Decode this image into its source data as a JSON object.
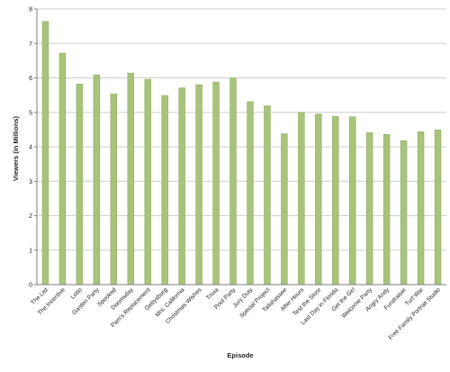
{
  "chart_data": {
    "type": "bar",
    "xlabel": "Episode",
    "ylabel": "Viewers (in Millions)",
    "ylim": [
      0,
      8
    ],
    "yticks": [
      0,
      1,
      2,
      3,
      4,
      5,
      6,
      7,
      8
    ],
    "grid": true,
    "legend": "none",
    "categories": [
      "The List",
      "The Incentive",
      "Lotto",
      "Garden Party",
      "Spooked",
      "Doomsday",
      "Pam's Replacement",
      "Gettysburg",
      "Mrs. California",
      "Christmas Wishes",
      "Trivia",
      "Pool Party",
      "Jury Duty",
      "Special Project",
      "Tallahassee",
      "After Hours",
      "Test the Store",
      "Last Day in Florida",
      "Get the Girl",
      "Welcome Party",
      "Angry Andy",
      "Fundraiser",
      "Turf War",
      "Free Family Portrait Studio"
    ],
    "values": [
      7.64,
      6.72,
      5.82,
      6.09,
      5.53,
      6.14,
      5.96,
      5.49,
      5.71,
      5.8,
      5.88,
      6.0,
      5.31,
      5.19,
      4.38,
      5.0,
      4.95,
      4.88,
      4.87,
      4.41,
      4.36,
      4.18,
      4.44,
      4.49
    ],
    "colors": {
      "bar": "#a8c47a",
      "bar_edge": "#8fae5c",
      "grid": "#cfcfcf",
      "axis": "#7f7f7f"
    }
  }
}
